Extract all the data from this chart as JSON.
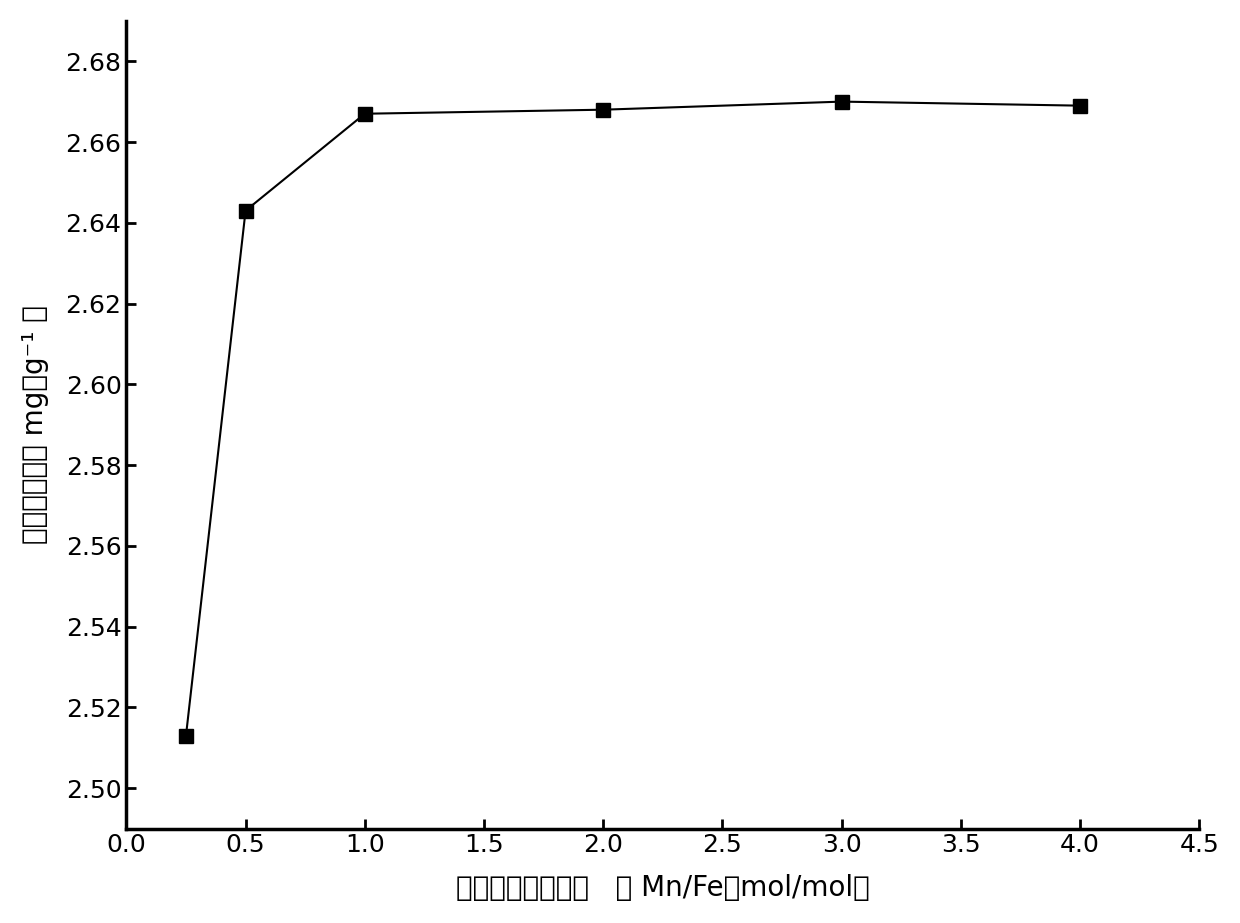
{
  "x": [
    0.25,
    0.5,
    1.0,
    2.0,
    3.0,
    4.0
  ],
  "y": [
    2.513,
    2.643,
    2.667,
    2.668,
    2.67,
    2.669
  ],
  "xlabel": "吸附剂锶铁摩尔比   （ Mn/Fe，mol/mol）",
  "ylabel": "平衡吸附量（ mg．g⁻¹ ）",
  "xlim": [
    0.0,
    4.5
  ],
  "ylim": [
    2.49,
    2.69
  ],
  "xticks": [
    0.0,
    0.5,
    1.0,
    1.5,
    2.0,
    2.5,
    3.0,
    3.5,
    4.0,
    4.5
  ],
  "yticks": [
    2.5,
    2.52,
    2.54,
    2.56,
    2.58,
    2.6,
    2.62,
    2.64,
    2.66,
    2.68
  ],
  "line_color": "#000000",
  "marker": "s",
  "marker_color": "#000000",
  "marker_size": 10,
  "line_style": "-",
  "line_width": 1.5,
  "bg_color": "#ffffff",
  "tick_fontsize": 18,
  "label_fontsize": 20,
  "ylabel_vertical": "平衡吸附量",
  "ylabel_unit": "（ mg．g⁻¹ ）"
}
